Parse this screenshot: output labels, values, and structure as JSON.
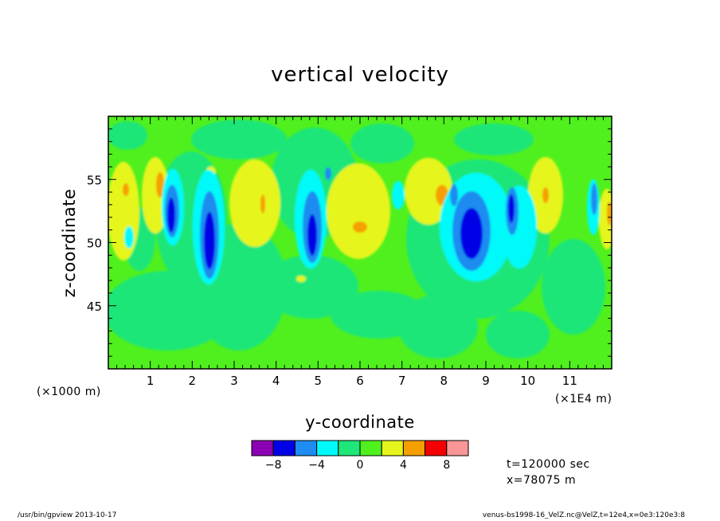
{
  "chart_data": {
    "type": "heatmap",
    "title": "vertical velocity",
    "xlabel": "y-coordinate",
    "ylabel": "z-coordinate",
    "x_unit_left": "(×1000 m)",
    "x_unit_right": "(×1E4 m)",
    "xlim": [
      0,
      12
    ],
    "ylim": [
      40,
      60
    ],
    "x_ticks": [
      "1",
      "2",
      "3",
      "4",
      "5",
      "6",
      "7",
      "8",
      "9",
      "10",
      "11"
    ],
    "y_ticks": [
      "45",
      "50",
      "55"
    ],
    "grid": false,
    "background_level": "0 to 2",
    "colorbar": {
      "levels": [
        -10,
        -8,
        -6,
        -4,
        -2,
        0,
        2,
        4,
        6,
        8,
        10
      ],
      "tick_labels": [
        "−8",
        "−4",
        "0",
        "4",
        "8"
      ],
      "tick_values": [
        -8,
        -4,
        0,
        4,
        8
      ],
      "colors": [
        "#8c00b4",
        "#0000e6",
        "#1e8cf0",
        "#00fafa",
        "#1ee678",
        "#50f01e",
        "#e6f51e",
        "#f5a000",
        "#f50000",
        "#fa9696"
      ]
    },
    "features": [
      {
        "kind": "updraft",
        "y": 0.35,
        "z": 52.5,
        "level": 4
      },
      {
        "kind": "updraft",
        "y": 1.2,
        "z": 53,
        "level": 6
      },
      {
        "kind": "downdraft",
        "y": 1.5,
        "z": 52,
        "level": -8
      },
      {
        "kind": "downdraft",
        "y": 2.4,
        "z": 50.5,
        "level": -8
      },
      {
        "kind": "updraft",
        "y": 3.5,
        "z": 53,
        "level": 4
      },
      {
        "kind": "downdraft",
        "y": 4.85,
        "z": 50.5,
        "level": -8
      },
      {
        "kind": "updraft",
        "y": 5.9,
        "z": 51.5,
        "level": 6
      },
      {
        "kind": "updraft",
        "y": 7.7,
        "z": 53.5,
        "level": 6
      },
      {
        "kind": "downdraft",
        "y": 8.6,
        "z": 50.5,
        "level": -8
      },
      {
        "kind": "downdraft",
        "y": 9.6,
        "z": 53,
        "level": -6
      },
      {
        "kind": "updraft",
        "y": 10.4,
        "z": 54,
        "level": 6
      },
      {
        "kind": "updraft",
        "y": 11.9,
        "z": 51,
        "level": 4
      }
    ]
  },
  "annotations": {
    "time": "t=120000 sec",
    "position": "x=78075 m"
  },
  "footer": {
    "left": "/usr/bin/gpview  2013-10-17",
    "right": "venus-bs1998-16_VelZ.nc@VelZ,t=12e4,x=0e3:120e3:8"
  }
}
